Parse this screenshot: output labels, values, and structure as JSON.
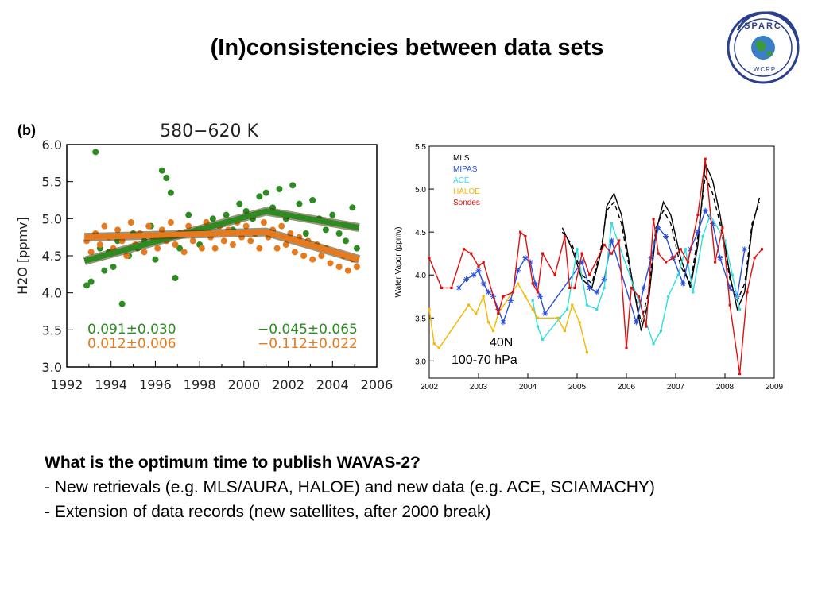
{
  "slide": {
    "title": "(In)consistencies between data sets",
    "question": "What is the optimum time to publish WAVAS-2?",
    "bullets": [
      "- New retrievals (e.g. MLS/AURA, HALOE) and new data (e.g. ACE, SCIAMACHY)",
      "- Extension of data records (new satellites, after 2000 break)"
    ]
  },
  "logo": {
    "top_text": "SPARC",
    "bottom_text": "WCRP",
    "color": "#2b3f8c",
    "icon": "globe-icon"
  },
  "chart_data": [
    {
      "type": "scatter",
      "panel_label": "(b)",
      "title": "580−620 K",
      "xlabel": "",
      "ylabel": "H2O [ppmv]",
      "xlim": [
        1992,
        2006
      ],
      "ylim": [
        3.0,
        6.0
      ],
      "xticks": [
        1992,
        1994,
        1996,
        1998,
        2000,
        2002,
        2004,
        2006
      ],
      "yticks": [
        3.0,
        3.5,
        4.0,
        4.5,
        5.0,
        5.5,
        6.0
      ],
      "colors": {
        "green": "#2e8b22",
        "orange": "#e87a1e"
      },
      "annotations": [
        {
          "text": "0.091±0.030",
          "color": "#2e8b22"
        },
        {
          "text": "0.012±0.006",
          "color": "#e87a1e"
        },
        {
          "text": "−0.045±0.065",
          "color": "#2e8b22"
        },
        {
          "text": "−0.112±0.022",
          "color": "#e87a1e"
        }
      ],
      "trends": [
        {
          "color": "green",
          "x": [
            1992.8,
            2001.0,
            2005.2
          ],
          "y": [
            4.43,
            5.1,
            4.88
          ]
        },
        {
          "color": "orange",
          "x": [
            1992.8,
            2001.0,
            2005.2
          ],
          "y": [
            4.75,
            4.82,
            4.45
          ]
        }
      ],
      "series": [
        {
          "color": "green",
          "points": [
            [
              1992.9,
              4.1
            ],
            [
              1993.1,
              4.15
            ],
            [
              1993.3,
              5.9
            ],
            [
              1993.5,
              4.6
            ],
            [
              1993.7,
              4.3
            ],
            [
              1993.9,
              4.55
            ],
            [
              1994.1,
              4.35
            ],
            [
              1994.3,
              4.7
            ],
            [
              1994.5,
              3.85
            ],
            [
              1994.8,
              4.5
            ],
            [
              1995.0,
              4.8
            ],
            [
              1995.2,
              4.6
            ],
            [
              1995.5,
              4.7
            ],
            [
              1995.8,
              4.9
            ],
            [
              1996.0,
              4.45
            ],
            [
              1996.3,
              5.65
            ],
            [
              1996.5,
              5.55
            ],
            [
              1996.7,
              5.35
            ],
            [
              1996.9,
              4.2
            ],
            [
              1997.1,
              4.6
            ],
            [
              1997.5,
              5.05
            ],
            [
              1997.8,
              4.8
            ],
            [
              1998.0,
              4.65
            ],
            [
              1998.3,
              4.95
            ],
            [
              1998.6,
              5.0
            ],
            [
              1998.9,
              4.9
            ],
            [
              1999.2,
              5.05
            ],
            [
              1999.5,
              4.85
            ],
            [
              1999.8,
              5.2
            ],
            [
              2000.1,
              5.1
            ],
            [
              2000.4,
              5.0
            ],
            [
              2000.7,
              5.3
            ],
            [
              2001.0,
              5.35
            ],
            [
              2001.3,
              5.15
            ],
            [
              2001.6,
              5.4
            ],
            [
              2001.9,
              5.0
            ],
            [
              2002.2,
              5.45
            ],
            [
              2002.5,
              5.2
            ],
            [
              2002.8,
              4.8
            ],
            [
              2003.1,
              5.25
            ],
            [
              2003.4,
              5.0
            ],
            [
              2003.7,
              4.85
            ],
            [
              2004.0,
              5.05
            ],
            [
              2004.3,
              4.8
            ],
            [
              2004.6,
              4.7
            ],
            [
              2004.9,
              5.15
            ],
            [
              2005.1,
              4.6
            ]
          ]
        },
        {
          "color": "orange",
          "points": [
            [
              1992.9,
              4.7
            ],
            [
              1993.1,
              4.55
            ],
            [
              1993.3,
              4.8
            ],
            [
              1993.5,
              4.65
            ],
            [
              1993.7,
              4.9
            ],
            [
              1993.9,
              4.75
            ],
            [
              1994.1,
              4.6
            ],
            [
              1994.3,
              4.85
            ],
            [
              1994.5,
              4.7
            ],
            [
              1994.7,
              4.5
            ],
            [
              1994.9,
              4.95
            ],
            [
              1995.1,
              4.65
            ],
            [
              1995.3,
              4.8
            ],
            [
              1995.5,
              4.55
            ],
            [
              1995.7,
              4.9
            ],
            [
              1995.9,
              4.75
            ],
            [
              1996.1,
              4.6
            ],
            [
              1996.3,
              4.85
            ],
            [
              1996.5,
              4.7
            ],
            [
              1996.7,
              4.95
            ],
            [
              1996.9,
              4.65
            ],
            [
              1997.1,
              4.8
            ],
            [
              1997.3,
              4.55
            ],
            [
              1997.5,
              4.9
            ],
            [
              1997.7,
              4.7
            ],
            [
              1997.9,
              4.85
            ],
            [
              1998.1,
              4.6
            ],
            [
              1998.3,
              4.95
            ],
            [
              1998.5,
              4.75
            ],
            [
              1998.7,
              4.6
            ],
            [
              1998.9,
              4.9
            ],
            [
              1999.1,
              4.7
            ],
            [
              1999.3,
              4.85
            ],
            [
              1999.5,
              4.65
            ],
            [
              1999.7,
              4.95
            ],
            [
              1999.9,
              4.75
            ],
            [
              2000.1,
              4.9
            ],
            [
              2000.3,
              4.7
            ],
            [
              2000.5,
              4.8
            ],
            [
              2000.7,
              4.6
            ],
            [
              2000.9,
              4.95
            ],
            [
              2001.1,
              4.75
            ],
            [
              2001.3,
              4.85
            ],
            [
              2001.5,
              4.6
            ],
            [
              2001.7,
              4.9
            ],
            [
              2001.9,
              4.65
            ],
            [
              2002.1,
              4.8
            ],
            [
              2002.3,
              4.55
            ],
            [
              2002.5,
              4.75
            ],
            [
              2002.7,
              4.5
            ],
            [
              2002.9,
              4.7
            ],
            [
              2003.1,
              4.45
            ],
            [
              2003.3,
              4.65
            ],
            [
              2003.5,
              4.5
            ],
            [
              2003.7,
              4.6
            ],
            [
              2003.9,
              4.4
            ],
            [
              2004.1,
              4.55
            ],
            [
              2004.3,
              4.35
            ],
            [
              2004.5,
              4.5
            ],
            [
              2004.7,
              4.3
            ],
            [
              2004.9,
              4.45
            ],
            [
              2005.1,
              4.35
            ]
          ]
        }
      ]
    },
    {
      "type": "line",
      "title": "",
      "xlabel": "",
      "ylabel": "Water Vapor (ppmv)",
      "xlim": [
        2002,
        2009
      ],
      "ylim": [
        2.8,
        5.5
      ],
      "xticks": [
        2002,
        2003,
        2004,
        2005,
        2006,
        2007,
        2008,
        2009
      ],
      "yticks": [
        3.0,
        3.5,
        4.0,
        4.5,
        5.0,
        5.5
      ],
      "legend_position": "top-left",
      "annotations": [
        {
          "text": "40N"
        },
        {
          "text": "100-70 hPa"
        }
      ],
      "series": [
        {
          "name": "MLS",
          "color": "#000000",
          "style": "solid",
          "x": [
            2004.7,
            2004.9,
            2005.1,
            2005.3,
            2005.5,
            2005.6,
            2005.75,
            2005.9,
            2006.1,
            2006.3,
            2006.45,
            2006.6,
            2006.75,
            2006.9,
            2007.1,
            2007.3,
            2007.45,
            2007.6,
            2007.75,
            2007.9,
            2008.1,
            2008.25,
            2008.4,
            2008.55,
            2008.7
          ],
          "y": [
            4.55,
            4.3,
            3.95,
            3.85,
            4.3,
            4.8,
            4.95,
            4.7,
            4.0,
            3.35,
            3.7,
            4.5,
            4.85,
            4.7,
            4.2,
            3.85,
            4.35,
            5.3,
            5.1,
            4.7,
            4.0,
            3.6,
            3.8,
            4.55,
            4.9
          ]
        },
        {
          "name": "MLS (dashed)",
          "color": "#000000",
          "style": "dashed",
          "x": [
            2004.7,
            2004.9,
            2005.1,
            2005.3,
            2005.5,
            2005.6,
            2005.75,
            2005.9,
            2006.1,
            2006.3,
            2006.45,
            2006.6,
            2006.75,
            2006.9,
            2007.1,
            2007.3,
            2007.45,
            2007.6,
            2007.75,
            2007.9,
            2008.1,
            2008.25,
            2008.4,
            2008.55,
            2008.7
          ],
          "y": [
            4.5,
            4.35,
            4.0,
            3.9,
            4.35,
            4.75,
            4.85,
            4.6,
            3.95,
            3.45,
            3.8,
            4.55,
            4.75,
            4.6,
            4.1,
            3.9,
            4.45,
            5.15,
            4.95,
            4.6,
            3.95,
            3.7,
            3.9,
            4.6,
            4.85
          ]
        },
        {
          "name": "MIPAS",
          "color": "#2b4fd8",
          "style": "star",
          "x": [
            2002.6,
            2002.75,
            2002.9,
            2003.0,
            2003.1,
            2003.2,
            2003.3,
            2003.4,
            2003.5,
            2003.65,
            2003.8,
            2003.95,
            2004.05,
            2004.15,
            2004.25,
            2004.35,
            2005.1,
            2005.25,
            2005.4,
            2005.55,
            2005.7,
            2006.2,
            2006.35,
            2006.5,
            2006.65,
            2006.8,
            2006.95,
            2007.15,
            2007.3,
            2007.45,
            2007.6,
            2007.75,
            2007.9,
            2008.1,
            2008.25,
            2008.4
          ],
          "y": [
            3.85,
            3.95,
            4.0,
            4.05,
            3.9,
            3.8,
            3.75,
            3.6,
            3.45,
            3.7,
            4.05,
            4.2,
            4.15,
            3.9,
            3.75,
            3.55,
            4.15,
            3.85,
            3.8,
            3.95,
            4.4,
            3.45,
            3.85,
            4.2,
            4.55,
            4.45,
            4.2,
            3.9,
            4.3,
            4.5,
            4.75,
            4.6,
            4.2,
            3.85,
            3.75,
            4.3
          ]
        },
        {
          "name": "ACE",
          "color": "#33dddd",
          "style": "dot",
          "x": [
            2004.1,
            2004.2,
            2004.3,
            2004.65,
            2004.8,
            2005.0,
            2005.2,
            2005.4,
            2005.55,
            2005.7,
            2006.55,
            2006.7,
            2006.85,
            2007.05,
            2007.2,
            2007.35,
            2007.55,
            2007.7,
            2008.0,
            2008.15,
            2008.3
          ],
          "y": [
            3.7,
            3.4,
            3.25,
            3.5,
            3.6,
            4.3,
            3.65,
            3.6,
            3.85,
            4.6,
            3.2,
            3.35,
            3.75,
            4.0,
            4.3,
            3.8,
            4.45,
            4.7,
            4.4,
            4.0,
            3.6
          ]
        },
        {
          "name": "HALOE",
          "color": "#f5b800",
          "style": "line",
          "x": [
            2002.0,
            2002.1,
            2002.2,
            2002.8,
            2002.95,
            2003.1,
            2003.2,
            2003.3,
            2003.4,
            2003.8,
            2003.95,
            2004.1,
            2004.2,
            2004.6,
            2004.75,
            2004.9,
            2005.05,
            2005.2
          ],
          "y": [
            3.6,
            3.2,
            3.15,
            3.65,
            3.55,
            3.75,
            3.45,
            3.35,
            3.55,
            3.9,
            3.75,
            3.6,
            3.5,
            3.5,
            3.35,
            3.65,
            3.45,
            3.1
          ]
        },
        {
          "name": "Sondes",
          "color": "#e01010",
          "style": "line",
          "x": [
            2002.0,
            2002.25,
            2002.45,
            2002.7,
            2002.85,
            2003.0,
            2003.1,
            2003.4,
            2003.5,
            2003.7,
            2003.85,
            2003.95,
            2004.1,
            2004.2,
            2004.3,
            2004.55,
            2004.75,
            2004.85,
            2004.95,
            2005.1,
            2005.25,
            2005.55,
            2005.7,
            2005.85,
            2006.0,
            2006.1,
            2006.25,
            2006.4,
            2006.55,
            2006.65,
            2006.8,
            2006.95,
            2007.1,
            2007.25,
            2007.45,
            2007.6,
            2007.8,
            2007.95,
            2008.1,
            2008.3,
            2008.45,
            2008.6,
            2008.75
          ],
          "y": [
            4.2,
            3.85,
            3.85,
            4.3,
            4.25,
            4.1,
            4.15,
            3.55,
            3.75,
            3.8,
            4.5,
            4.45,
            3.9,
            3.8,
            4.25,
            4.0,
            4.45,
            3.85,
            3.85,
            4.25,
            4.0,
            4.35,
            4.25,
            4.4,
            3.15,
            3.85,
            3.75,
            3.4,
            4.65,
            4.25,
            4.15,
            4.2,
            4.3,
            4.15,
            4.7,
            5.35,
            4.15,
            4.55,
            3.65,
            2.85,
            3.8,
            4.2,
            4.3
          ]
        }
      ]
    }
  ]
}
